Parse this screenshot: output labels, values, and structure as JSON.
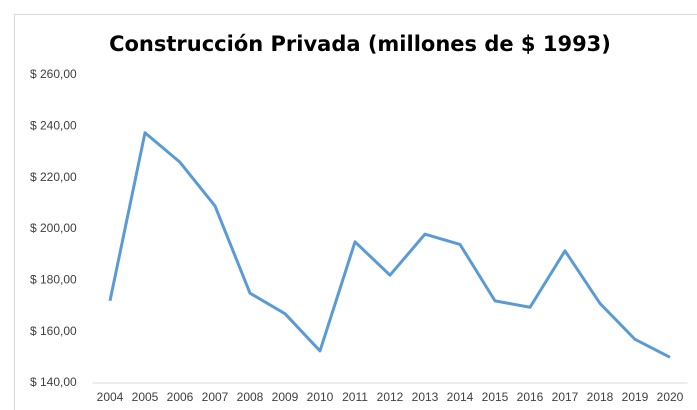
{
  "chart_data": {
    "type": "line",
    "title": "Construcción Privada (millones de $ 1993)",
    "categories": [
      "2004",
      "2005",
      "2006",
      "2007",
      "2008",
      "2009",
      "2010",
      "2011",
      "2012",
      "2013",
      "2014",
      "2015",
      "2016",
      "2017",
      "2018",
      "2019",
      "2020"
    ],
    "series": [
      {
        "name": "Construcción Privada",
        "color": "#5b9bd5",
        "values": [
          172,
          237.5,
          226,
          209,
          175,
          167,
          152.5,
          195,
          182,
          198,
          194,
          172,
          169.5,
          191.5,
          171,
          157,
          150
        ]
      }
    ],
    "ylim": [
      140,
      260
    ],
    "yticks": [
      {
        "value": 140,
        "label": "$ 140,00"
      },
      {
        "value": 160,
        "label": "$ 160,00"
      },
      {
        "value": 180,
        "label": "$ 180,00"
      },
      {
        "value": 200,
        "label": "$ 200,00"
      },
      {
        "value": 220,
        "label": "$ 220,00"
      },
      {
        "value": 240,
        "label": "$ 240,00"
      },
      {
        "value": 260,
        "label": "$ 260,00"
      }
    ],
    "grid": false
  }
}
